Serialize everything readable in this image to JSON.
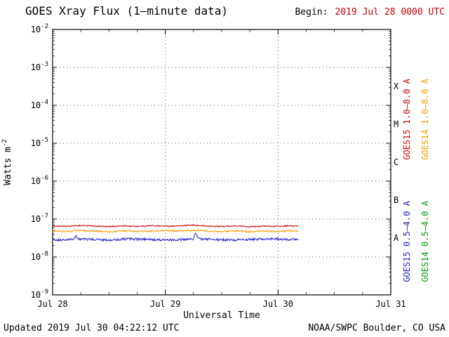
{
  "header": {
    "title": "GOES Xray Flux (1–minute data)",
    "begin_label": "Begin:",
    "begin_value": "2019 Jul 28 0000 UTC"
  },
  "footer": {
    "updated": "Updated 2019 Jul 30 04:22:12 UTC",
    "source": "NOAA/SWPC Boulder, CO USA"
  },
  "chart_data": {
    "type": "line",
    "title": "GOES Xray Flux (1-minute data)",
    "xlabel": "Universal Time",
    "ylabel": {
      "base": "Watts m",
      "sup": "-2"
    },
    "y_scale": "log",
    "y_range": [
      1e-09,
      0.01
    ],
    "y_tick_exponents": [
      -2,
      -3,
      -4,
      -5,
      -6,
      -7,
      -8,
      -9
    ],
    "x_range_hours": [
      0,
      72
    ],
    "x_ticks": [
      {
        "hour": 0,
        "label": "Jul 28"
      },
      {
        "hour": 24,
        "label": "Jul 29"
      },
      {
        "hour": 48,
        "label": "Jul 30"
      },
      {
        "hour": 72,
        "label": "Jul 31"
      }
    ],
    "grid": {
      "horizontal_dotted_exponents": [
        -3,
        -4,
        -5,
        -6,
        -7,
        -8
      ],
      "vertical_dotted_hours": [
        24,
        48
      ]
    },
    "flare_classes": [
      {
        "label": "X",
        "center_exponent": -3.5
      },
      {
        "label": "M",
        "center_exponent": -4.5
      },
      {
        "label": "C",
        "center_exponent": -5.5
      },
      {
        "label": "B",
        "center_exponent": -6.5
      },
      {
        "label": "A",
        "center_exponent": -7.5
      }
    ],
    "series": [
      {
        "id": "goes15-long",
        "name": "GOES15 1.0–8.0 A",
        "color": "#cc0000",
        "noise_frac": 0.035,
        "hours": [
          0,
          3,
          6,
          9,
          12,
          15,
          18,
          21,
          24,
          27,
          30,
          33,
          36,
          39,
          42,
          45,
          48,
          50,
          52.4
        ],
        "flux": [
          6.6e-08,
          6.4e-08,
          6.8e-08,
          6.5e-08,
          6.3e-08,
          6.6e-08,
          6.4e-08,
          6.7e-08,
          6.5e-08,
          6.6e-08,
          6.9e-08,
          6.5e-08,
          6.4e-08,
          6.6e-08,
          6.3e-08,
          6.5e-08,
          6.4e-08,
          6.6e-08,
          6.5e-08
        ]
      },
      {
        "id": "goes14-long",
        "name": "GOES14 1.0–8.0 A",
        "color": "#ff9900",
        "noise_frac": 0.05,
        "hours": [
          0,
          3,
          6,
          9,
          12,
          15,
          18,
          21,
          24,
          27,
          30,
          33,
          36,
          39,
          42,
          45,
          48,
          50,
          52.4
        ],
        "flux": [
          4.9e-08,
          4.7e-08,
          5e-08,
          4.8e-08,
          4.6e-08,
          4.9e-08,
          4.7e-08,
          4.8e-08,
          5e-08,
          4.8e-08,
          5.1e-08,
          4.8e-08,
          4.7e-08,
          4.9e-08,
          4.6e-08,
          4.8e-08,
          4.7e-08,
          4.9e-08,
          4.8e-08
        ]
      },
      {
        "id": "goes15-short",
        "name": "GOES15 0.5–4.0 A",
        "color": "#2222cc",
        "noise_frac": 0.07,
        "hours": [
          0,
          2,
          4.5,
          5,
          5.5,
          8,
          12,
          16,
          20,
          24,
          28,
          30,
          30.4,
          30.8,
          31.5,
          34,
          38,
          42,
          46,
          50,
          52.4
        ],
        "flux": [
          2.9e-08,
          2.8e-08,
          2.9e-08,
          3.6e-08,
          3e-08,
          2.9e-08,
          2.8e-08,
          3e-08,
          2.9e-08,
          2.8e-08,
          2.9e-08,
          3e-08,
          4.3e-08,
          3.4e-08,
          3e-08,
          2.9e-08,
          2.8e-08,
          2.9e-08,
          3e-08,
          2.9e-08,
          2.9e-08
        ]
      }
    ],
    "legend_right": [
      {
        "id": "goes15-long",
        "label": "GOES15 1.0–8.0 A",
        "color": "#cc0000",
        "group": "long"
      },
      {
        "id": "goes14-long",
        "label": "GOES14 1.0–8.0 A",
        "color": "#ff9900",
        "group": "long"
      },
      {
        "id": "goes15-short",
        "label": "GOES15 0.5–4.0 A",
        "color": "#2222cc",
        "group": "short"
      },
      {
        "id": "goes14-short",
        "label": "GOES14 0.5–4.0 A",
        "color": "#00a000",
        "group": "short"
      }
    ]
  }
}
